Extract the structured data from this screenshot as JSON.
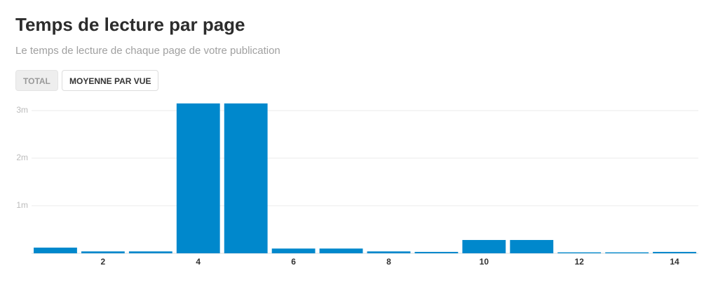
{
  "chart_data": {
    "type": "bar",
    "title": "Temps de lecture par page",
    "subtitle": "Le temps de lecture de chaque page de votre publication",
    "categories": [
      null,
      "2",
      null,
      "4",
      null,
      "6",
      null,
      "8",
      null,
      "10",
      null,
      "12",
      null,
      "14"
    ],
    "values": [
      0.12,
      0.04,
      0.04,
      3.15,
      3.15,
      0.1,
      0.1,
      0.04,
      0.03,
      0.28,
      0.28,
      0.02,
      0.02,
      0.03
    ],
    "color": "#0088cc",
    "ylim": [
      0,
      3.2
    ],
    "yticks": [
      {
        "value": 1,
        "label": "1m"
      },
      {
        "value": 2,
        "label": "2m"
      },
      {
        "value": 3,
        "label": "3m"
      }
    ],
    "grid": true
  },
  "buttons": [
    "TOTAL",
    "MOYENNE PAR VUE"
  ]
}
